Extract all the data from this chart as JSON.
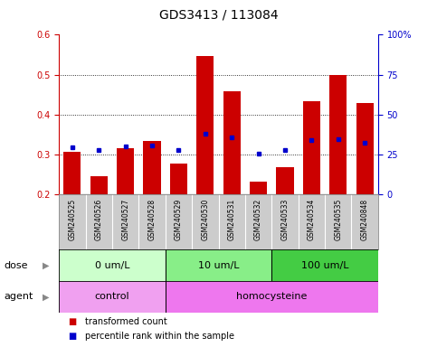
{
  "title": "GDS3413 / 113084",
  "samples": [
    "GSM240525",
    "GSM240526",
    "GSM240527",
    "GSM240528",
    "GSM240529",
    "GSM240530",
    "GSM240531",
    "GSM240532",
    "GSM240533",
    "GSM240534",
    "GSM240535",
    "GSM240848"
  ],
  "transformed_count": [
    0.307,
    0.245,
    0.315,
    0.333,
    0.278,
    0.547,
    0.458,
    0.232,
    0.267,
    0.433,
    0.5,
    0.428
  ],
  "percentile_rank": [
    0.317,
    0.311,
    0.32,
    0.322,
    0.312,
    0.352,
    0.342,
    0.303,
    0.312,
    0.336,
    0.338,
    0.33
  ],
  "ylim": [
    0.2,
    0.6
  ],
  "y2lim": [
    0,
    100
  ],
  "yticks": [
    0.2,
    0.3,
    0.4,
    0.5,
    0.6
  ],
  "y2ticks": [
    0,
    25,
    50,
    75,
    100
  ],
  "dose_groups": [
    {
      "label": "0 um/L",
      "start": 0,
      "end": 4,
      "color": "#ccffcc"
    },
    {
      "label": "10 um/L",
      "start": 4,
      "end": 8,
      "color": "#88ee88"
    },
    {
      "label": "100 um/L",
      "start": 8,
      "end": 12,
      "color": "#44cc44"
    }
  ],
  "agent_groups": [
    {
      "label": "control",
      "start": 0,
      "end": 4,
      "color": "#f0a0f0"
    },
    {
      "label": "homocysteine",
      "start": 4,
      "end": 12,
      "color": "#ee77ee"
    }
  ],
  "bar_color": "#cc0000",
  "dot_color": "#0000cc",
  "background_color": "#ffffff",
  "label_bg_color": "#cccccc",
  "legend_red": "transformed count",
  "legend_blue": "percentile rank within the sample",
  "ylabel_left_color": "#cc0000",
  "ylabel_right_color": "#0000cc",
  "title_fontsize": 10,
  "tick_fontsize": 7,
  "sample_fontsize": 5.5,
  "row_fontsize": 8,
  "legend_fontsize": 7
}
